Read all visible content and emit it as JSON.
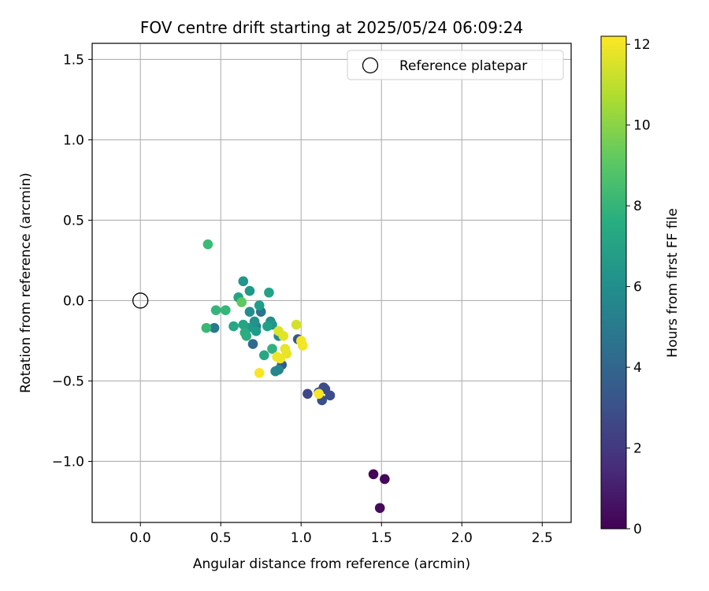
{
  "chart_data": {
    "type": "scatter",
    "title": "FOV centre drift starting at 2025/05/24 06:09:24",
    "xlabel": "Angular distance from reference (arcmin)",
    "ylabel": "Rotation from reference (arcmin)",
    "xlim": [
      -0.3,
      2.68
    ],
    "ylim": [
      -1.38,
      1.6
    ],
    "x_ticks": [
      0.0,
      0.5,
      1.0,
      1.5,
      2.0,
      2.5
    ],
    "x_tick_labels": [
      "0.0",
      "0.5",
      "1.0",
      "1.5",
      "2.0",
      "2.5"
    ],
    "y_ticks": [
      -1.0,
      -0.5,
      0.0,
      0.5,
      1.0,
      1.5
    ],
    "y_tick_labels": [
      "−1.0",
      "−0.5",
      "0.0",
      "0.5",
      "1.0",
      "1.5"
    ],
    "grid": true,
    "legend": {
      "position": "top-right",
      "label": "Reference platepar"
    },
    "reference_point": {
      "x": 0.0,
      "y": 0.0
    },
    "colorbar": {
      "label": "Hours from first FF file",
      "colormap": "viridis",
      "range": [
        0,
        12.2
      ],
      "ticks": [
        0,
        2,
        4,
        6,
        8,
        10,
        12
      ],
      "tick_labels": [
        "0",
        "2",
        "4",
        "6",
        "8",
        "10",
        "12"
      ]
    },
    "points": [
      {
        "x": 1.45,
        "y": -1.08,
        "hours": 0.1
      },
      {
        "x": 1.52,
        "y": -1.11,
        "hours": 0.2
      },
      {
        "x": 1.49,
        "y": -1.29,
        "hours": 0.3
      },
      {
        "x": 1.04,
        "y": -0.58,
        "hours": 2.6
      },
      {
        "x": 1.14,
        "y": -0.54,
        "hours": 2.7
      },
      {
        "x": 1.15,
        "y": -0.55,
        "hours": 2.8
      },
      {
        "x": 1.18,
        "y": -0.59,
        "hours": 2.9
      },
      {
        "x": 1.13,
        "y": -0.62,
        "hours": 3.0
      },
      {
        "x": 1.11,
        "y": -0.57,
        "hours": 3.1
      },
      {
        "x": 0.98,
        "y": -0.24,
        "hours": 3.3
      },
      {
        "x": 0.88,
        "y": -0.4,
        "hours": 3.6
      },
      {
        "x": 0.7,
        "y": -0.27,
        "hours": 4.2
      },
      {
        "x": 0.75,
        "y": -0.07,
        "hours": 4.6
      },
      {
        "x": 0.46,
        "y": -0.17,
        "hours": 4.9
      },
      {
        "x": 0.72,
        "y": -0.16,
        "hours": 5.3
      },
      {
        "x": 0.86,
        "y": -0.43,
        "hours": 5.5
      },
      {
        "x": 0.84,
        "y": -0.44,
        "hours": 5.6
      },
      {
        "x": 0.86,
        "y": -0.22,
        "hours": 5.8
      },
      {
        "x": 0.81,
        "y": -0.13,
        "hours": 6.0
      },
      {
        "x": 0.68,
        "y": -0.07,
        "hours": 6.0
      },
      {
        "x": 0.71,
        "y": -0.13,
        "hours": 6.2
      },
      {
        "x": 0.82,
        "y": -0.15,
        "hours": 6.3
      },
      {
        "x": 0.64,
        "y": 0.12,
        "hours": 6.4
      },
      {
        "x": 0.68,
        "y": 0.06,
        "hours": 6.5
      },
      {
        "x": 0.67,
        "y": -0.17,
        "hours": 6.6
      },
      {
        "x": 0.72,
        "y": -0.19,
        "hours": 6.7
      },
      {
        "x": 0.74,
        "y": -0.03,
        "hours": 6.8
      },
      {
        "x": 0.79,
        "y": -0.16,
        "hours": 6.9
      },
      {
        "x": 0.8,
        "y": 0.05,
        "hours": 7.0
      },
      {
        "x": 0.64,
        "y": -0.15,
        "hours": 7.1
      },
      {
        "x": 0.61,
        "y": 0.02,
        "hours": 7.1
      },
      {
        "x": 0.58,
        "y": -0.16,
        "hours": 7.2
      },
      {
        "x": 0.77,
        "y": -0.34,
        "hours": 7.3
      },
      {
        "x": 0.65,
        "y": -0.2,
        "hours": 7.5
      },
      {
        "x": 0.66,
        "y": -0.22,
        "hours": 7.6
      },
      {
        "x": 0.82,
        "y": -0.3,
        "hours": 7.8
      },
      {
        "x": 0.47,
        "y": -0.06,
        "hours": 8.0
      },
      {
        "x": 0.53,
        "y": -0.06,
        "hours": 8.1
      },
      {
        "x": 0.41,
        "y": -0.17,
        "hours": 8.2
      },
      {
        "x": 0.42,
        "y": 0.35,
        "hours": 8.3
      },
      {
        "x": 0.63,
        "y": -0.01,
        "hours": 9.1
      },
      {
        "x": 0.97,
        "y": -0.15,
        "hours": 11.4
      },
      {
        "x": 0.86,
        "y": -0.19,
        "hours": 11.6
      },
      {
        "x": 0.89,
        "y": -0.22,
        "hours": 11.7
      },
      {
        "x": 0.9,
        "y": -0.3,
        "hours": 11.8
      },
      {
        "x": 0.91,
        "y": -0.33,
        "hours": 11.8
      },
      {
        "x": 0.85,
        "y": -0.35,
        "hours": 11.9
      },
      {
        "x": 0.87,
        "y": -0.36,
        "hours": 11.9
      },
      {
        "x": 1.0,
        "y": -0.25,
        "hours": 12.0
      },
      {
        "x": 1.01,
        "y": -0.28,
        "hours": 12.0
      },
      {
        "x": 0.74,
        "y": -0.45,
        "hours": 12.1
      },
      {
        "x": 1.11,
        "y": -0.58,
        "hours": 12.1
      }
    ]
  }
}
